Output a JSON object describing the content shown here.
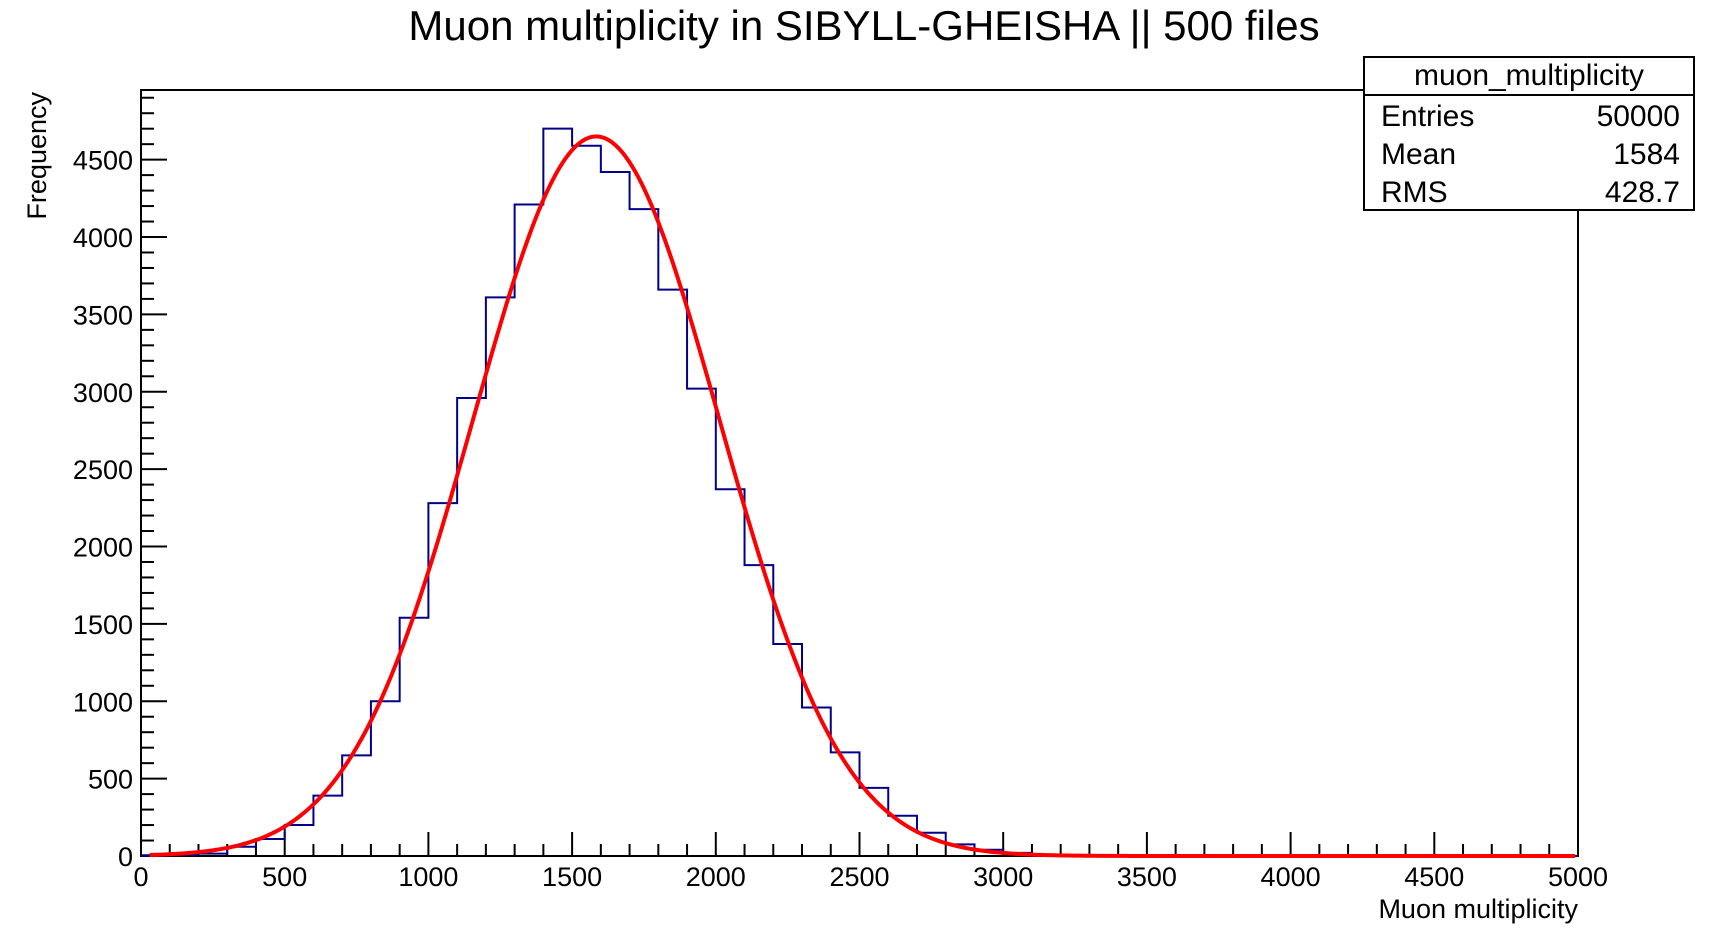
{
  "chart_data": {
    "type": "bar",
    "title": "Muon multiplicity in SIBYLL-GHEISHA || 500 files",
    "xlabel": "Muon multiplicity",
    "ylabel": "Frequency",
    "xlim": [
      0,
      5000
    ],
    "ylim": [
      0,
      4950
    ],
    "x_ticks": [
      "0",
      "500",
      "1000",
      "1500",
      "2000",
      "2500",
      "3000",
      "3500",
      "4000",
      "4500",
      "5000"
    ],
    "y_ticks": [
      "0",
      "500",
      "1000",
      "1500",
      "2000",
      "2500",
      "3000",
      "3500",
      "4000",
      "4500"
    ],
    "bin_width": 100,
    "bins": [
      {
        "x0": 0,
        "value": 5
      },
      {
        "x0": 100,
        "value": 8
      },
      {
        "x0": 200,
        "value": 15
      },
      {
        "x0": 300,
        "value": 60
      },
      {
        "x0": 400,
        "value": 110
      },
      {
        "x0": 500,
        "value": 200
      },
      {
        "x0": 600,
        "value": 390
      },
      {
        "x0": 700,
        "value": 650
      },
      {
        "x0": 800,
        "value": 1000
      },
      {
        "x0": 900,
        "value": 1540
      },
      {
        "x0": 1000,
        "value": 2280
      },
      {
        "x0": 1100,
        "value": 2960
      },
      {
        "x0": 1200,
        "value": 3610
      },
      {
        "x0": 1300,
        "value": 4210
      },
      {
        "x0": 1400,
        "value": 4700
      },
      {
        "x0": 1500,
        "value": 4590
      },
      {
        "x0": 1600,
        "value": 4420
      },
      {
        "x0": 1700,
        "value": 4180
      },
      {
        "x0": 1800,
        "value": 3660
      },
      {
        "x0": 1900,
        "value": 3020
      },
      {
        "x0": 2000,
        "value": 2370
      },
      {
        "x0": 2100,
        "value": 1880
      },
      {
        "x0": 2200,
        "value": 1370
      },
      {
        "x0": 2300,
        "value": 960
      },
      {
        "x0": 2400,
        "value": 670
      },
      {
        "x0": 2500,
        "value": 440
      },
      {
        "x0": 2600,
        "value": 260
      },
      {
        "x0": 2700,
        "value": 150
      },
      {
        "x0": 2800,
        "value": 75
      },
      {
        "x0": 2900,
        "value": 40
      },
      {
        "x0": 3000,
        "value": 20
      },
      {
        "x0": 3100,
        "value": 10
      },
      {
        "x0": 3200,
        "value": 5
      },
      {
        "x0": 3300,
        "value": 3
      },
      {
        "x0": 3400,
        "value": 2
      },
      {
        "x0": 3500,
        "value": 1
      },
      {
        "x0": 3600,
        "value": 1
      },
      {
        "x0": 3700,
        "value": 0
      },
      {
        "x0": 3800,
        "value": 0
      },
      {
        "x0": 3900,
        "value": 0
      },
      {
        "x0": 4000,
        "value": 0
      },
      {
        "x0": 4100,
        "value": 0
      },
      {
        "x0": 4200,
        "value": 0
      },
      {
        "x0": 4300,
        "value": 0
      },
      {
        "x0": 4400,
        "value": 0
      },
      {
        "x0": 4500,
        "value": 0
      },
      {
        "x0": 4600,
        "value": 0
      },
      {
        "x0": 4700,
        "value": 0
      },
      {
        "x0": 4800,
        "value": 0
      },
      {
        "x0": 4900,
        "value": 0
      }
    ],
    "fit": {
      "type": "gaussian",
      "amplitude": 4650,
      "mean": 1584,
      "sigma": 428.7,
      "range": [
        30,
        4990
      ]
    },
    "stats_box": {
      "title": "muon_multiplicity",
      "rows": [
        {
          "label": "Entries",
          "value": "50000"
        },
        {
          "label": "Mean",
          "value": "1584"
        },
        {
          "label": "RMS",
          "value": "428.7"
        }
      ],
      "placement": "top-right"
    },
    "colors": {
      "histogram": "#00008b",
      "fit": "#ff0000",
      "frame": "#000000"
    },
    "grid": false
  }
}
